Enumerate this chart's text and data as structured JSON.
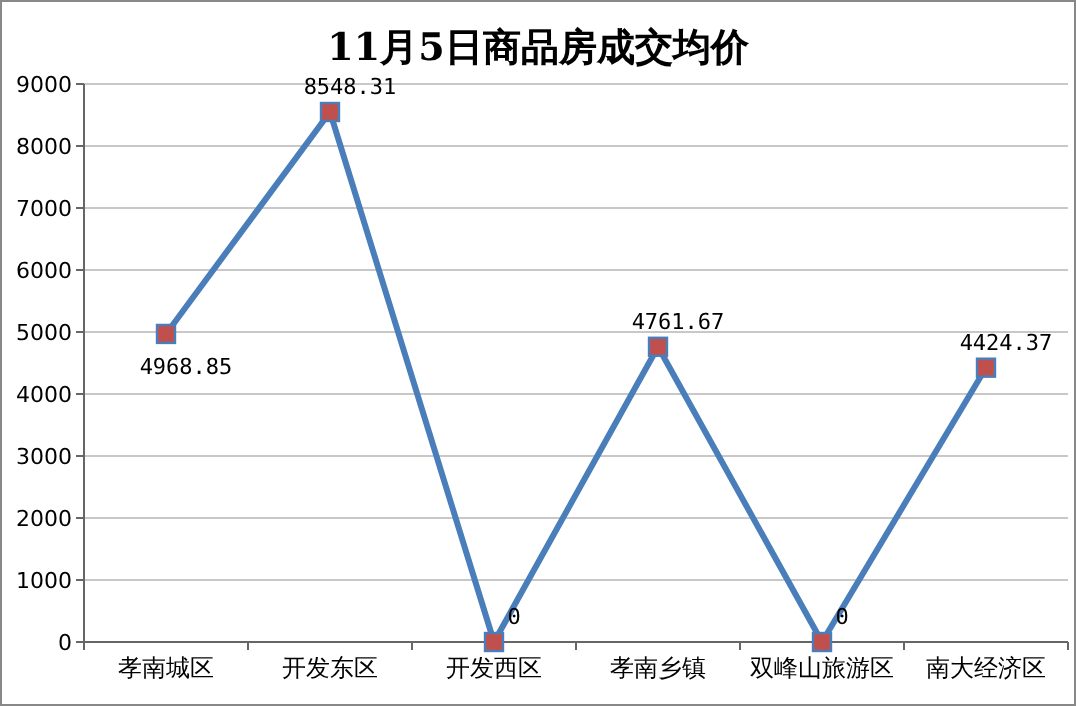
{
  "chart_data": {
    "type": "line",
    "title": "11月5日商品房成交均价",
    "categories": [
      "孝南城区",
      "开发东区",
      "开发西区",
      "孝南乡镇",
      "双峰山旅游区",
      "南大经济区"
    ],
    "series": [
      {
        "color": "#4a7ebb",
        "values": [
          4968.85,
          8548.31,
          0,
          4761.67,
          0,
          4424.37
        ]
      }
    ],
    "ylim": [
      0,
      9000
    ],
    "yticks": [
      0,
      1000,
      2000,
      3000,
      4000,
      5000,
      6000,
      7000,
      8000,
      9000
    ],
    "grid": "y",
    "marker": "square",
    "line_style": "solid",
    "data_labels": true
  }
}
